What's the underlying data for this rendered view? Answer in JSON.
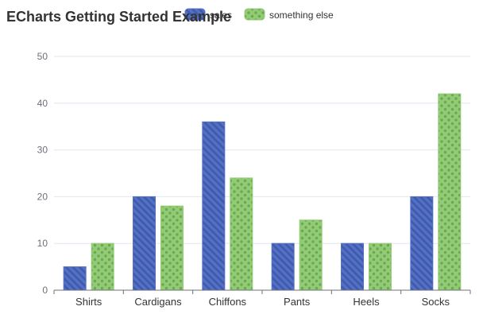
{
  "chart_data": {
    "type": "bar",
    "title": "ECharts Getting Started Example",
    "categories": [
      "Shirts",
      "Cardigans",
      "Chiffons",
      "Pants",
      "Heels",
      "Socks"
    ],
    "series": [
      {
        "name": "sales",
        "values": [
          5,
          20,
          36,
          10,
          10,
          20
        ],
        "color": "#5470c6",
        "pattern": "diagonal-stripes"
      },
      {
        "name": "something else",
        "values": [
          10,
          18,
          24,
          15,
          10,
          42
        ],
        "color": "#91cc75",
        "pattern": "dots"
      }
    ],
    "yticks": [
      0,
      10,
      20,
      30,
      40,
      50
    ],
    "ylim": [
      0,
      50
    ],
    "grid": true,
    "legend_position": "top"
  }
}
